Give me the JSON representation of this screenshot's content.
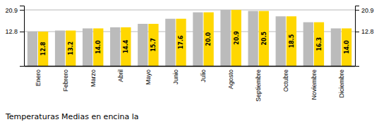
{
  "chart_data": {
    "type": "bar",
    "title": "Temperaturas Medias en encina la",
    "categories": [
      "Enero",
      "Febrero",
      "Marzo",
      "Abril",
      "Mayo",
      "Junio",
      "Julio",
      "Agosto",
      "Septiembre",
      "Octubre",
      "Noviembre",
      "Diciembre"
    ],
    "series": [
      {
        "color": "#BBBBBB",
        "values": [
          12.8,
          13.2,
          14.0,
          14.4,
          15.7,
          17.6,
          20.0,
          20.9,
          20.5,
          18.5,
          16.3,
          14.0
        ]
      },
      {
        "color": "#FFD700",
        "values": [
          12.8,
          13.2,
          14.0,
          14.4,
          15.7,
          17.6,
          20.0,
          20.9,
          20.5,
          18.5,
          16.3,
          14.0
        ],
        "value_labels": [
          "12.8",
          "13.2",
          "14.0",
          "14.4",
          "15.7",
          "17.6",
          "20.0",
          "20.9",
          "20.5",
          "18.5",
          "16.3",
          "14.0"
        ]
      }
    ],
    "ylim": [
      0.0,
      22.5
    ],
    "yticks": [
      12.8,
      20.9
    ],
    "y2lim": [
      0.0,
      22.5
    ],
    "y2ticks": [
      12.8,
      20.9
    ],
    "grid": true,
    "data_labels": true
  }
}
